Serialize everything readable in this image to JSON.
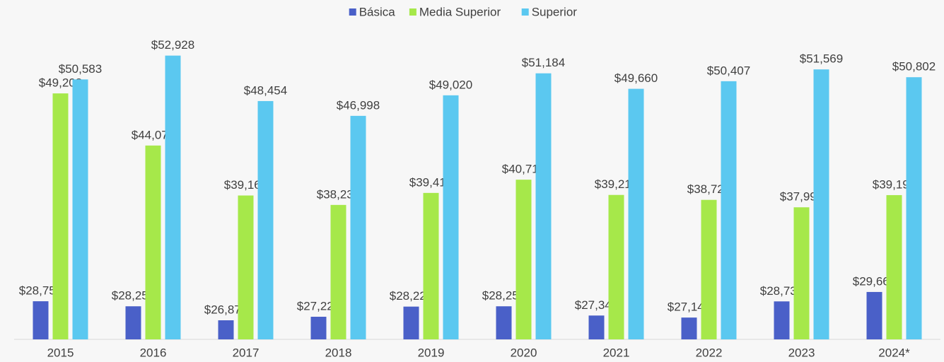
{
  "chart_data": {
    "type": "bar",
    "categories": [
      "2015",
      "2016",
      "2017",
      "2018",
      "2019",
      "2020",
      "2021",
      "2022",
      "2023",
      "2024*"
    ],
    "series": [
      {
        "name": "Básica",
        "color": "#4a60c8",
        "values": [
          28752,
          28256,
          26879,
          27226,
          28225,
          28256,
          27346,
          27147,
          28738,
          29666
        ],
        "value_labels": [
          "$28,752",
          "$28,256",
          "$26,879",
          "$27,226",
          "$28,225",
          "$28,256",
          "$27,346",
          "$27,147",
          "$28,738",
          "$29,666"
        ]
      },
      {
        "name": "Media Superior",
        "color": "#a6e84a",
        "values": [
          49208,
          44077,
          39160,
          38232,
          39414,
          40716,
          39214,
          38729,
          37998,
          39198
        ],
        "value_labels": [
          "$49,208",
          "$44,077",
          "$39,160",
          "$38,232",
          "$39,414",
          "$40,716",
          "$39,214",
          "$38,729",
          "$37,998",
          "$39,198"
        ]
      },
      {
        "name": "Superior",
        "color": "#5bc8f0",
        "values": [
          50583,
          52928,
          48454,
          46998,
          49020,
          51184,
          49660,
          50407,
          51569,
          50802
        ],
        "value_labels": [
          "$50,583",
          "$52,928",
          "$48,454",
          "$46,998",
          "$49,020",
          "$51,184",
          "$49,660",
          "$50,407",
          "$51,569",
          "$50,802"
        ]
      }
    ],
    "ylim": [
      25000,
      58400
    ],
    "legend": "top"
  }
}
